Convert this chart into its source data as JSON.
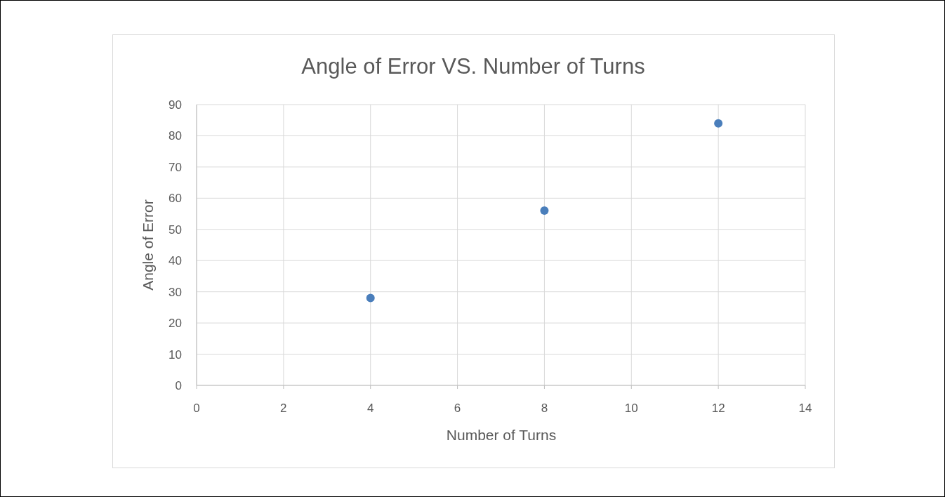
{
  "chart_data": {
    "type": "scatter",
    "title": "Angle of Error VS. Number of Turns",
    "xlabel": "Number of Turns",
    "ylabel": "Angle of Error",
    "x": [
      4,
      8,
      12
    ],
    "series": [
      {
        "color": "#4a7ebb",
        "values": [
          28,
          56,
          84
        ]
      }
    ],
    "xlim": [
      0,
      14
    ],
    "xticks": [
      0,
      2,
      4,
      6,
      8,
      10,
      12,
      14
    ],
    "ylim": [
      0,
      90
    ],
    "yticks": [
      0,
      10,
      20,
      30,
      40,
      50,
      60,
      70,
      80,
      90
    ],
    "grid": true,
    "marker": "circle"
  }
}
